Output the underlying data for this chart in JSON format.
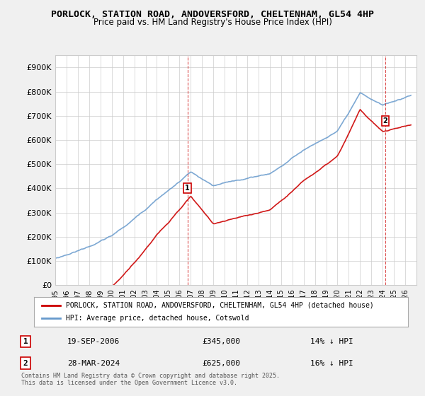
{
  "title": "PORLOCK, STATION ROAD, ANDOVERSFORD, CHELTENHAM, GL54 4HP",
  "subtitle": "Price paid vs. HM Land Registry's House Price Index (HPI)",
  "red_line_label": "PORLOCK, STATION ROAD, ANDOVERSFORD, CHELTENHAM, GL54 4HP (detached house)",
  "blue_line_label": "HPI: Average price, detached house, Cotswold",
  "transaction1_label": "1",
  "transaction1_date": "19-SEP-2006",
  "transaction1_price": "£345,000",
  "transaction1_hpi": "14% ↓ HPI",
  "transaction2_label": "2",
  "transaction2_date": "28-MAR-2024",
  "transaction2_price": "£625,000",
  "transaction2_hpi": "16% ↓ HPI",
  "footer": "Contains HM Land Registry data © Crown copyright and database right 2025.\nThis data is licensed under the Open Government Licence v3.0.",
  "xmin": 1995.0,
  "xmax": 2027.0,
  "ymin": 0,
  "ymax": 950000,
  "yticks": [
    0,
    100000,
    200000,
    300000,
    400000,
    500000,
    600000,
    700000,
    800000,
    900000
  ],
  "ytick_labels": [
    "£0",
    "£100K",
    "£200K",
    "£300K",
    "£400K",
    "£500K",
    "£600K",
    "£700K",
    "£800K",
    "£900K"
  ],
  "background_color": "#f0f0f0",
  "plot_bg_color": "#ffffff",
  "red_color": "#cc0000",
  "blue_color": "#6699cc",
  "marker1_x": 2006.72,
  "marker1_y": 345000,
  "marker2_x": 2024.24,
  "marker2_y": 625000,
  "vline1_x": 2006.72,
  "vline2_x": 2024.24
}
